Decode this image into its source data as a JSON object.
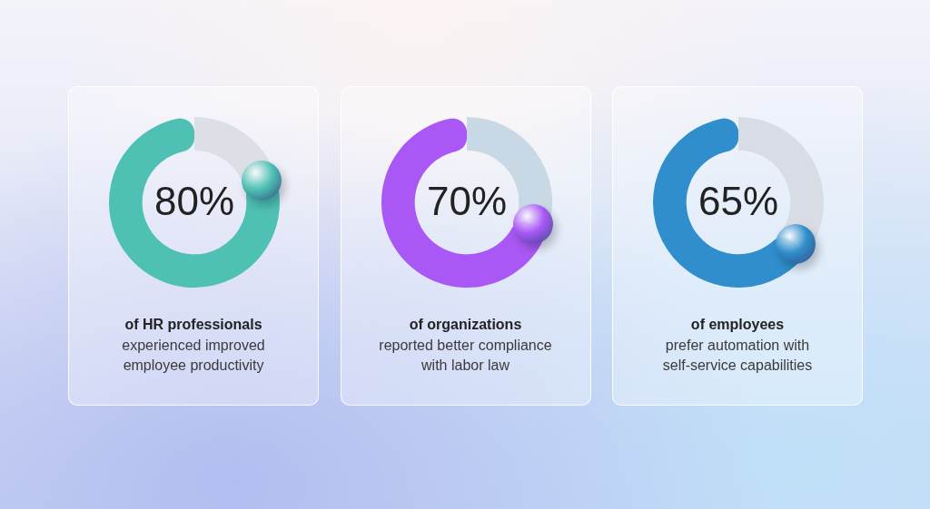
{
  "chart_data": [
    {
      "type": "donut",
      "title": "of HR professionals",
      "subtitle": "experienced improved employee productivity",
      "categories": [
        null,
        null
      ],
      "values": [
        80,
        20
      ],
      "colors": [
        "#4fc0b4",
        "#dcdfe6"
      ],
      "value_labels": [
        "80%",
        null
      ],
      "legend": false
    },
    {
      "type": "donut",
      "title": "of organizations",
      "subtitle": "reported better compliance with labor law",
      "categories": [
        null,
        null
      ],
      "values": [
        70,
        30
      ],
      "colors": [
        "#a958f5",
        "#c8d8e4"
      ],
      "value_labels": [
        "70%",
        null
      ],
      "legend": false
    },
    {
      "type": "donut",
      "title": "of employees",
      "subtitle": "prefer automation with self-service capabilities",
      "categories": [
        null,
        null
      ],
      "values": [
        65,
        35
      ],
      "colors": [
        "#2f8ecb",
        "#d8dce4"
      ],
      "value_labels": [
        "65%",
        null
      ],
      "legend": false
    }
  ]
}
